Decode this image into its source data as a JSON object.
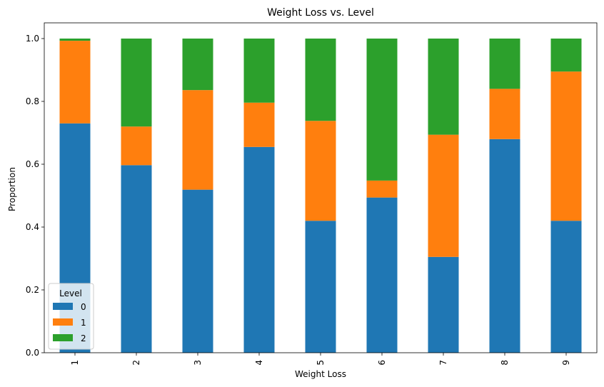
{
  "chart_data": {
    "type": "bar",
    "stacked": true,
    "title": "Weight Loss vs. Level",
    "xlabel": "Weight Loss",
    "ylabel": "Proportion",
    "ylim": [
      0,
      1.05
    ],
    "yticks": [
      "0.0",
      "0.2",
      "0.4",
      "0.6",
      "0.8",
      "1.0"
    ],
    "categories": [
      "1",
      "2",
      "3",
      "4",
      "5",
      "6",
      "7",
      "8",
      "9"
    ],
    "legend": {
      "title": "Level",
      "placement": "lower-left"
    },
    "grid": false,
    "series": [
      {
        "name": "0",
        "color": "#1f77b4",
        "values": [
          0.73,
          0.597,
          0.519,
          0.655,
          0.42,
          0.494,
          0.305,
          0.68,
          0.42
        ]
      },
      {
        "name": "1",
        "color": "#ff7f0e",
        "values": [
          0.263,
          0.123,
          0.317,
          0.141,
          0.318,
          0.054,
          0.389,
          0.16,
          0.475
        ]
      },
      {
        "name": "2",
        "color": "#2ca02c",
        "values": [
          0.007,
          0.28,
          0.164,
          0.204,
          0.262,
          0.452,
          0.306,
          0.16,
          0.105
        ]
      }
    ]
  }
}
